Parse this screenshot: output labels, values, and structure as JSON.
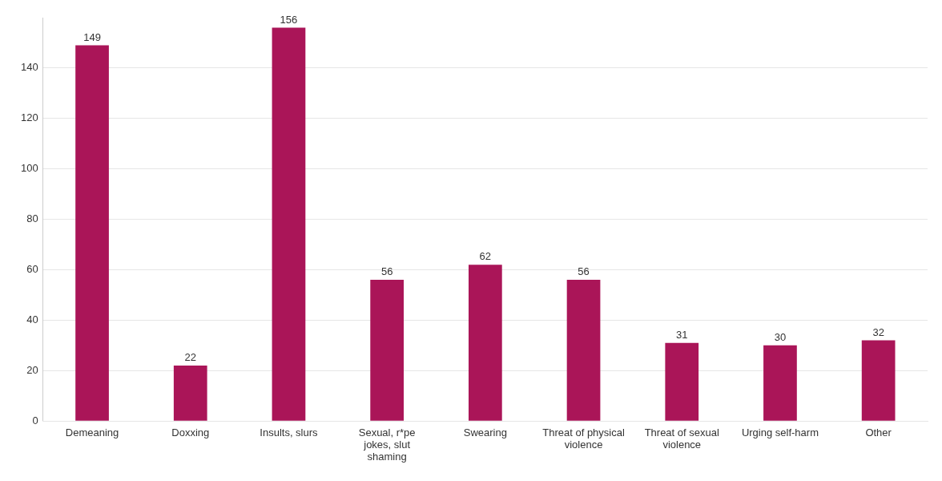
{
  "chart_data": {
    "type": "bar",
    "categories": [
      "Demeaning",
      "Doxxing",
      "Insults, slurs",
      "Sexual, r*pe jokes, slut shaming",
      "Swearing",
      "Threat of physical violence",
      "Threat of sexual violence",
      "Urging self-harm",
      "Other"
    ],
    "values": [
      149,
      22,
      156,
      56,
      62,
      56,
      31,
      30,
      32
    ],
    "color": "#aa1558",
    "ylim": [
      0,
      160
    ],
    "yticks": [
      0,
      20,
      40,
      60,
      80,
      100,
      120,
      140
    ],
    "grid": true,
    "data_labels": true
  }
}
